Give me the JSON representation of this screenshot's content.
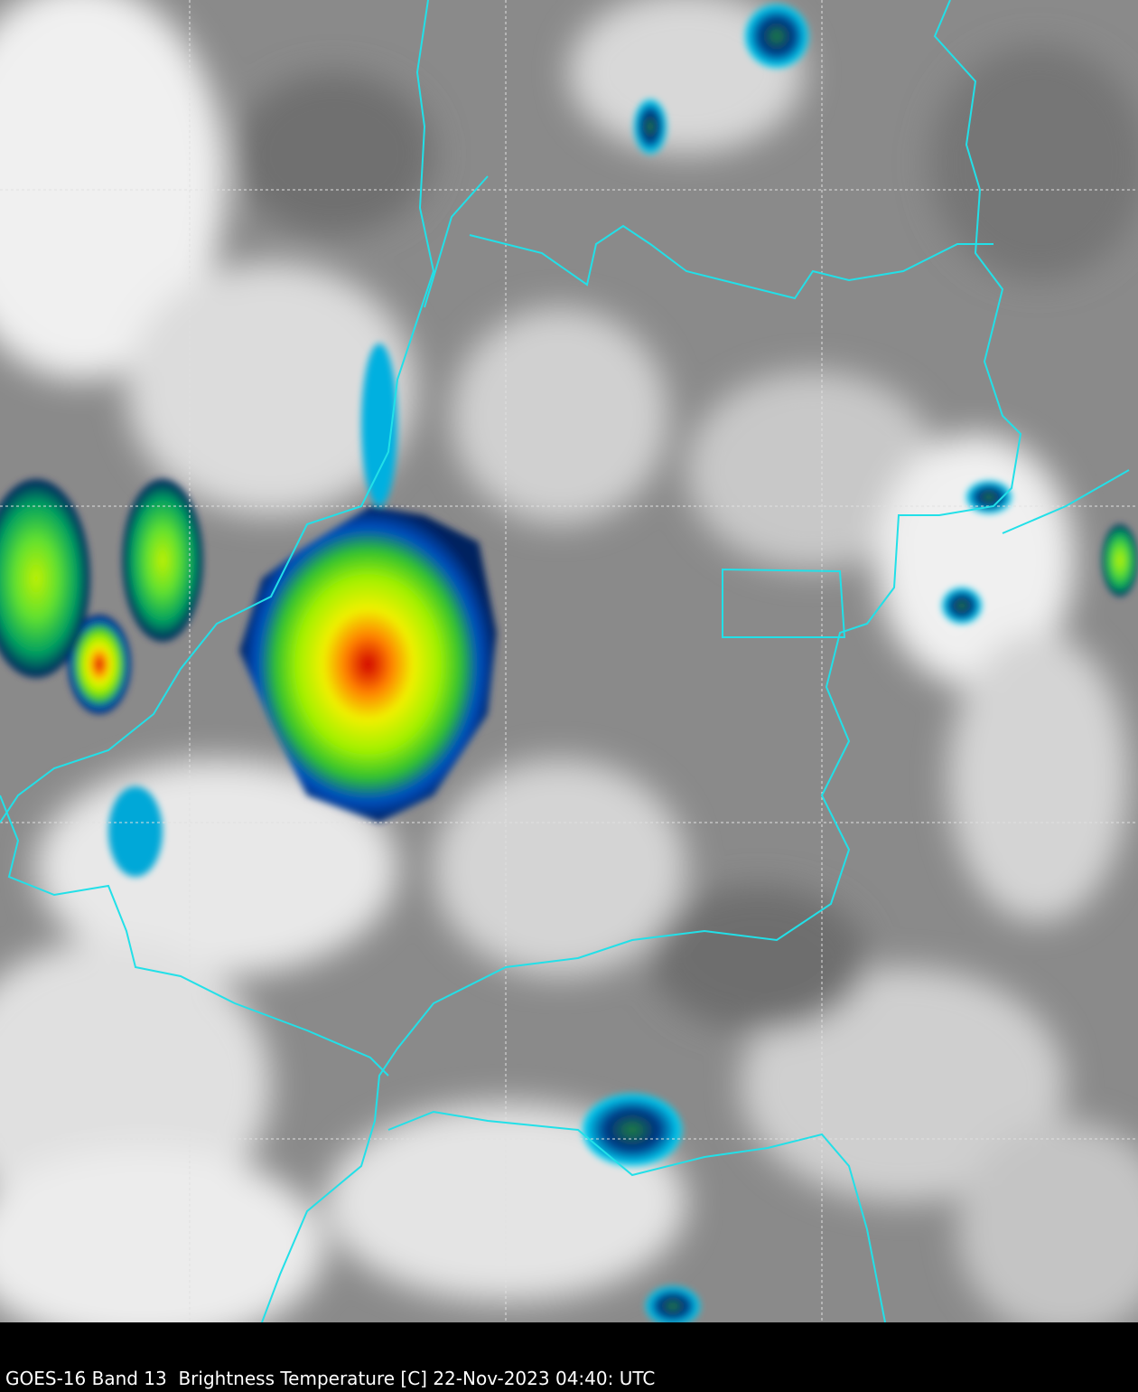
{
  "caption": "GOES-16 Band 13  Brightness Temperature [C] 22-Nov-2023 04:40: UTC",
  "colors": {
    "background": "#000000",
    "border_lines": "#22e0e8",
    "grid_lines": "#e0e0e0",
    "cloud_warm": "#7f7f7f",
    "cloud_cold": "#f4f4f4",
    "cold_top_scale": [
      "#00205f",
      "#0050c0",
      "#00e0ff",
      "#30c030",
      "#a0f000",
      "#f0f000",
      "#ff8000",
      "#e00000",
      "#800000"
    ]
  }
}
